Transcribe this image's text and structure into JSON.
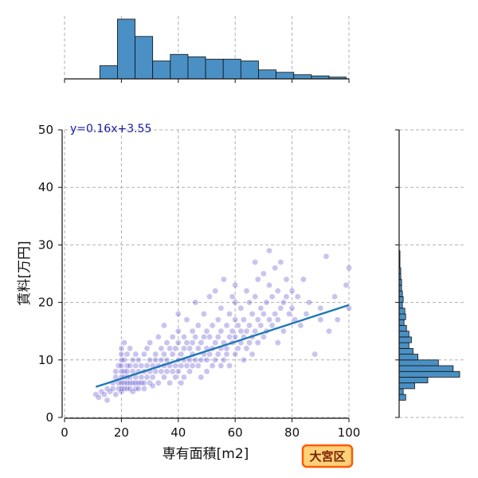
{
  "chart_data": {
    "type": "scatter",
    "xlabel": "専有面積[m2]",
    "ylabel": "賃料[万円]",
    "xlim": [
      0,
      100
    ],
    "ylim": [
      0,
      50
    ],
    "xticks": [
      0,
      20,
      40,
      60,
      80,
      100
    ],
    "yticks": [
      0,
      10,
      20,
      30,
      40,
      50
    ],
    "grid": true,
    "regression": {
      "equation": "y=0.16x+3.55",
      "slope": 0.16,
      "intercept": 3.55,
      "x_range": [
        11,
        100
      ],
      "color": "#1f77b4"
    },
    "points_color": "#3b2cc6",
    "hist_color": "#4a90c4",
    "top_histogram": {
      "bin_edges": [
        0,
        6.2,
        12.4,
        18.6,
        24.8,
        31,
        37.2,
        43.4,
        49.6,
        55.8,
        62,
        68.2,
        74.4,
        80.6,
        86.8,
        93,
        99
      ],
      "counts": [
        0,
        0,
        22,
        100,
        71,
        30,
        41,
        37,
        33,
        33,
        30,
        15,
        11,
        7,
        5,
        3
      ]
    },
    "right_histogram": {
      "bin_edges": [
        3,
        4,
        5,
        6,
        7,
        8,
        9,
        10,
        11,
        12,
        13,
        14,
        15,
        16,
        17,
        18,
        19,
        20,
        21,
        22,
        23,
        24,
        25,
        26,
        27,
        28,
        29,
        30
      ],
      "counts": [
        8,
        5,
        19,
        35,
        74,
        66,
        48,
        23,
        17,
        12,
        15,
        12,
        9,
        6,
        8,
        7,
        4,
        5,
        4,
        3,
        3,
        2,
        2,
        1,
        1,
        1,
        0
      ]
    },
    "points": [
      [
        11,
        4
      ],
      [
        12,
        3.5
      ],
      [
        13,
        4.5
      ],
      [
        14,
        4
      ],
      [
        15,
        5
      ],
      [
        15,
        3
      ],
      [
        16,
        4.5
      ],
      [
        17,
        5
      ],
      [
        17,
        6
      ],
      [
        18,
        7
      ],
      [
        18,
        4
      ],
      [
        18,
        8
      ],
      [
        19,
        6
      ],
      [
        19,
        9
      ],
      [
        19,
        5
      ],
      [
        20,
        5
      ],
      [
        20,
        6
      ],
      [
        20,
        7
      ],
      [
        20,
        8
      ],
      [
        20,
        9
      ],
      [
        20,
        10
      ],
      [
        20,
        11
      ],
      [
        20,
        12
      ],
      [
        20,
        4.5
      ],
      [
        21,
        6
      ],
      [
        21,
        8
      ],
      [
        21,
        10
      ],
      [
        21,
        7
      ],
      [
        21,
        5
      ],
      [
        21,
        13
      ],
      [
        22,
        5
      ],
      [
        22,
        7
      ],
      [
        22,
        9
      ],
      [
        22,
        11
      ],
      [
        22,
        6
      ],
      [
        22,
        8
      ],
      [
        23,
        6
      ],
      [
        23,
        9
      ],
      [
        23,
        5
      ],
      [
        23,
        7
      ],
      [
        23,
        12
      ],
      [
        24,
        6
      ],
      [
        24,
        8
      ],
      [
        24,
        10
      ],
      [
        24,
        4.5
      ],
      [
        25,
        5
      ],
      [
        25,
        7
      ],
      [
        25,
        9
      ],
      [
        25,
        11
      ],
      [
        25,
        6
      ],
      [
        26,
        6
      ],
      [
        26,
        8
      ],
      [
        26,
        10
      ],
      [
        26,
        5
      ],
      [
        27,
        7
      ],
      [
        27,
        9
      ],
      [
        27,
        6
      ],
      [
        28,
        6
      ],
      [
        28,
        8
      ],
      [
        28,
        11
      ],
      [
        28,
        5
      ],
      [
        29,
        7
      ],
      [
        29,
        9
      ],
      [
        29,
        12
      ],
      [
        30,
        6
      ],
      [
        30,
        8
      ],
      [
        30,
        10
      ],
      [
        30,
        13
      ],
      [
        31,
        7
      ],
      [
        31,
        9
      ],
      [
        31,
        5.5
      ],
      [
        32,
        8
      ],
      [
        32,
        10
      ],
      [
        32,
        11
      ],
      [
        33,
        6
      ],
      [
        33,
        9
      ],
      [
        33,
        14
      ],
      [
        34,
        8
      ],
      [
        34,
        12
      ],
      [
        34,
        10
      ],
      [
        35,
        7
      ],
      [
        35,
        9
      ],
      [
        35,
        11
      ],
      [
        35,
        16
      ],
      [
        36,
        8
      ],
      [
        36,
        10
      ],
      [
        36,
        13
      ],
      [
        37,
        9
      ],
      [
        37,
        12
      ],
      [
        37,
        6
      ],
      [
        38,
        8
      ],
      [
        38,
        11
      ],
      [
        38,
        14
      ],
      [
        39,
        9
      ],
      [
        39,
        12
      ],
      [
        39,
        7
      ],
      [
        40,
        8
      ],
      [
        40,
        10
      ],
      [
        40,
        13
      ],
      [
        40,
        15
      ],
      [
        40,
        18
      ],
      [
        41,
        9
      ],
      [
        41,
        11
      ],
      [
        41,
        6
      ],
      [
        42,
        10
      ],
      [
        42,
        12
      ],
      [
        42,
        14
      ],
      [
        42,
        7
      ],
      [
        43,
        9
      ],
      [
        43,
        13
      ],
      [
        43,
        17
      ],
      [
        44,
        10
      ],
      [
        44,
        12
      ],
      [
        44,
        8
      ],
      [
        45,
        11
      ],
      [
        45,
        13
      ],
      [
        45,
        15
      ],
      [
        45,
        9
      ],
      [
        46,
        10
      ],
      [
        46,
        14
      ],
      [
        46,
        20
      ],
      [
        47,
        12
      ],
      [
        47,
        9
      ],
      [
        47,
        16
      ],
      [
        48,
        10
      ],
      [
        48,
        13
      ],
      [
        48,
        7
      ],
      [
        49,
        11
      ],
      [
        49,
        14
      ],
      [
        49,
        18
      ],
      [
        50,
        10
      ],
      [
        50,
        12
      ],
      [
        50,
        15
      ],
      [
        50,
        8
      ],
      [
        51,
        11
      ],
      [
        51,
        14
      ],
      [
        51,
        21
      ],
      [
        52,
        12
      ],
      [
        52,
        9
      ],
      [
        52,
        16
      ],
      [
        53,
        13
      ],
      [
        53,
        10
      ],
      [
        53,
        22
      ],
      [
        54,
        11
      ],
      [
        54,
        14
      ],
      [
        54,
        17
      ],
      [
        55,
        12
      ],
      [
        55,
        15
      ],
      [
        55,
        9
      ],
      [
        55,
        19
      ],
      [
        56,
        10
      ],
      [
        56,
        13
      ],
      [
        56,
        24
      ],
      [
        57,
        12
      ],
      [
        57,
        16
      ],
      [
        57,
        11
      ],
      [
        58,
        14
      ],
      [
        58,
        9
      ],
      [
        58,
        18
      ],
      [
        59,
        13
      ],
      [
        59,
        15
      ],
      [
        59,
        21
      ],
      [
        60,
        11
      ],
      [
        60,
        14
      ],
      [
        60,
        17
      ],
      [
        60,
        20
      ],
      [
        60,
        23
      ],
      [
        61,
        12
      ],
      [
        61,
        16
      ],
      [
        62,
        13
      ],
      [
        62,
        15
      ],
      [
        62,
        19
      ],
      [
        63,
        14
      ],
      [
        63,
        17
      ],
      [
        63,
        10
      ],
      [
        64,
        15
      ],
      [
        64,
        12
      ],
      [
        64,
        22
      ],
      [
        65,
        13
      ],
      [
        65,
        16
      ],
      [
        65,
        20
      ],
      [
        66,
        14
      ],
      [
        66,
        18
      ],
      [
        66,
        11
      ],
      [
        67,
        15
      ],
      [
        67,
        21
      ],
      [
        67,
        27
      ],
      [
        68,
        13
      ],
      [
        68,
        17
      ],
      [
        68,
        24
      ],
      [
        69,
        16
      ],
      [
        69,
        19
      ],
      [
        70,
        14
      ],
      [
        70,
        18
      ],
      [
        70,
        25
      ],
      [
        71,
        15
      ],
      [
        71,
        20
      ],
      [
        72,
        17
      ],
      [
        72,
        23
      ],
      [
        72,
        29
      ],
      [
        73,
        16
      ],
      [
        73,
        21
      ],
      [
        74,
        18
      ],
      [
        74,
        26
      ],
      [
        75,
        17
      ],
      [
        75,
        22
      ],
      [
        75,
        13
      ],
      [
        76,
        19
      ],
      [
        76,
        27
      ],
      [
        77,
        20
      ],
      [
        77,
        15
      ],
      [
        78,
        21
      ],
      [
        78,
        24
      ],
      [
        79,
        18
      ],
      [
        80,
        22
      ],
      [
        80,
        19
      ],
      [
        81,
        17
      ],
      [
        82,
        21
      ],
      [
        83,
        16
      ],
      [
        84,
        24
      ],
      [
        85,
        18
      ],
      [
        86,
        20
      ],
      [
        88,
        11
      ],
      [
        90,
        19
      ],
      [
        92,
        28
      ],
      [
        95,
        21
      ],
      [
        100,
        26
      ],
      [
        100,
        19
      ],
      [
        99,
        23
      ],
      [
        96,
        17
      ],
      [
        93,
        15
      ],
      [
        90,
        17
      ]
    ]
  },
  "badge": {
    "text": "大宮区"
  }
}
